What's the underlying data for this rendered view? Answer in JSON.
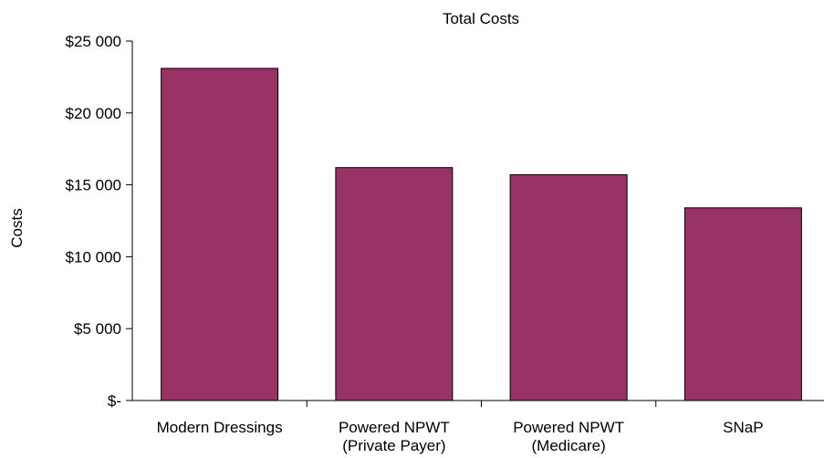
{
  "chart_data": {
    "type": "bar",
    "title": "Total Costs",
    "xlabel": "",
    "ylabel": "Costs",
    "categories": [
      [
        "Modern Dressings"
      ],
      [
        "Powered NPWT",
        "(Private Payer)"
      ],
      [
        "Powered NPWT",
        "(Medicare)"
      ],
      [
        "SNaP"
      ]
    ],
    "values": [
      23100,
      16200,
      15700,
      13400
    ],
    "ylim": [
      0,
      25000
    ],
    "yticks": [
      {
        "value": 25000,
        "label": "$25 000"
      },
      {
        "value": 20000,
        "label": "$20 000"
      },
      {
        "value": 15000,
        "label": "$15 000"
      },
      {
        "value": 10000,
        "label": "$10 000"
      },
      {
        "value": 5000,
        "label": "$5 000"
      },
      {
        "value": 0,
        "label": "$-"
      }
    ],
    "bar_color": "#993366",
    "grid": false,
    "legend": "none"
  }
}
